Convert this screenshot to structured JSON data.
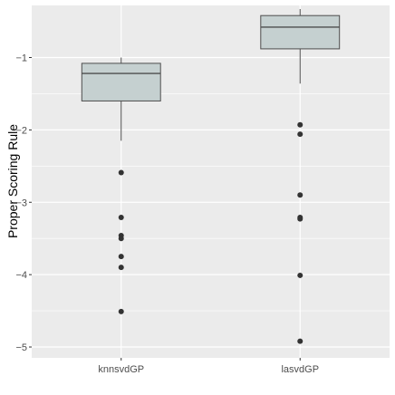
{
  "chart_data": {
    "type": "boxplot",
    "title": "",
    "xlabel": "",
    "ylabel": "Proper Scoring Rule",
    "categories": [
      "knnsvdGP",
      "lasvdGP"
    ],
    "ylim": [
      -5.15,
      -0.28
    ],
    "y_ticks": [
      -5,
      -4,
      -3,
      -2,
      -1
    ],
    "y_tick_labels": [
      "−5",
      "−4",
      "−3",
      "−2",
      "−1"
    ],
    "grid": true,
    "legend": "none",
    "boxes": [
      {
        "category": "knnsvdGP",
        "whisker_low": -2.15,
        "q1": -1.6,
        "median": -1.22,
        "q3": -1.08,
        "whisker_high": -1.0,
        "outliers": [
          -2.59,
          -3.21,
          -3.46,
          -3.5,
          -3.75,
          -3.9,
          -4.51
        ]
      },
      {
        "category": "lasvdGP",
        "whisker_low": -1.36,
        "q1": -0.88,
        "median": -0.58,
        "q3": -0.42,
        "whisker_high": -0.33,
        "outliers": [
          -1.93,
          -2.06,
          -2.9,
          -3.21,
          -3.23,
          -4.01,
          -4.92
        ]
      }
    ],
    "colors": {
      "panel_background": "#ebebeb",
      "grid": "#ffffff",
      "box_fill": "#c5d0d0",
      "box_line": "#4d4d4d",
      "outlier": "#333333"
    }
  }
}
